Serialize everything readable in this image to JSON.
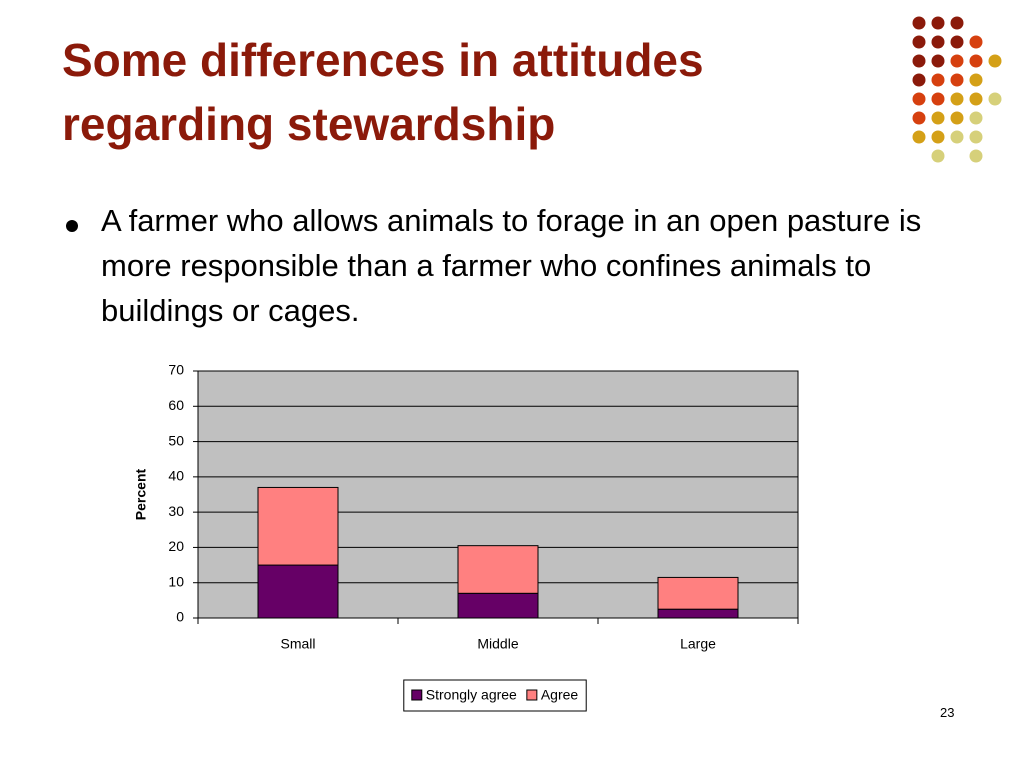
{
  "slide": {
    "title": [
      "Some differences in attitudes",
      "regarding stewardship"
    ],
    "bullets": [
      "A farmer who allows animals to forage in an open pasture is more responsible than a farmer who confines animals to buildings or cages."
    ],
    "page_number": 23
  },
  "chart_data": {
    "type": "stacked-bar",
    "categories": [
      "Small",
      "Middle",
      "Large"
    ],
    "series": [
      {
        "name": "Strongly agree",
        "color": "#660066",
        "values": [
          15,
          7,
          2.5
        ]
      },
      {
        "name": "Agree",
        "color": "#ff8080",
        "values": [
          22,
          13.5,
          9
        ]
      }
    ],
    "y_label": "Percent",
    "ylim": [
      0,
      70
    ],
    "yticks": [
      0,
      10,
      20,
      30,
      40,
      50,
      60,
      70
    ],
    "grid": true,
    "plot_background": "#c0c0c0",
    "legend": "bottom"
  }
}
